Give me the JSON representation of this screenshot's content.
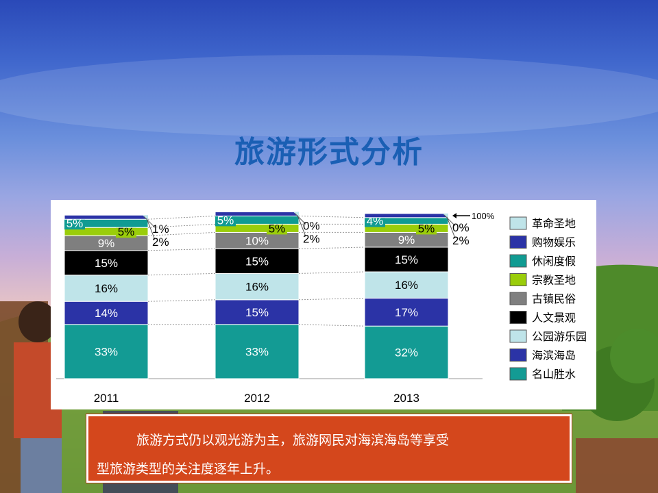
{
  "page": {
    "title": "旅游形式分析",
    "caption_line1": "旅游方式仍以观光游为主，旅游网民对海滨海岛等享受",
    "caption_line2": "型旅游类型的关注度逐年上升。"
  },
  "chart_data": {
    "type": "bar",
    "stacked": true,
    "percent_stacked": true,
    "categories": [
      "2011",
      "2012",
      "2013"
    ],
    "ylim": [
      0,
      100
    ],
    "annotation": "100%",
    "series": [
      {
        "name": "名山胜水",
        "values": [
          33,
          33,
          32
        ],
        "labels": [
          "33%",
          "33%",
          "32%"
        ]
      },
      {
        "name": "海滨海岛",
        "values": [
          14,
          15,
          17
        ],
        "labels": [
          "14%",
          "15%",
          "17%"
        ]
      },
      {
        "name": "公园游乐园",
        "values": [
          16,
          16,
          16
        ],
        "labels": [
          "16%",
          "16%",
          "16%"
        ]
      },
      {
        "name": "人文景观",
        "values": [
          15,
          15,
          15
        ],
        "labels": [
          "15%",
          "15%",
          "15%"
        ]
      },
      {
        "name": "古镇民俗",
        "values": [
          9,
          10,
          9
        ],
        "labels": [
          "9%",
          "10%",
          "9%"
        ]
      },
      {
        "name": "宗教圣地",
        "values": [
          5,
          5,
          5
        ],
        "labels": [
          "5%",
          "5%",
          "5%"
        ]
      },
      {
        "name": "休闲度假",
        "values": [
          5,
          5,
          4
        ],
        "labels": [
          "5%",
          "5%",
          "4%"
        ]
      },
      {
        "name": "购物娱乐",
        "values": [
          1,
          0,
          0
        ],
        "labels": [
          "1%",
          "0%",
          "0%"
        ]
      },
      {
        "name": "革命圣地",
        "values": [
          2,
          2,
          2
        ],
        "labels": [
          "2%",
          "2%",
          "2%"
        ]
      }
    ],
    "colors": [
      "#139b94",
      "#2b33a6",
      "#bfe4e9",
      "#000000",
      "#7f7f7f",
      "#9acd0a",
      "#109b92",
      "#2b33a6",
      "#bfe4e9"
    ],
    "label_colors": [
      "#ffffff",
      "#ffffff",
      "#000000",
      "#ffffff",
      "#ffffff",
      "#000000",
      "#ffffff",
      "#000000",
      "#000000"
    ],
    "legend": {
      "position": "right",
      "items": [
        "革命圣地",
        "购物娱乐",
        "休闲度假",
        "宗教圣地",
        "古镇民俗",
        "人文景观",
        "公园游乐园",
        "海滨海岛",
        "名山胜水"
      ],
      "colors": [
        "#bfe4e9",
        "#2b33a6",
        "#109b92",
        "#9acd0a",
        "#7f7f7f",
        "#000000",
        "#bfe4e9",
        "#2b33a6",
        "#139b94"
      ]
    }
  },
  "colors": {
    "title": "#1a5fb4",
    "caption_bg": "#d4471c"
  }
}
